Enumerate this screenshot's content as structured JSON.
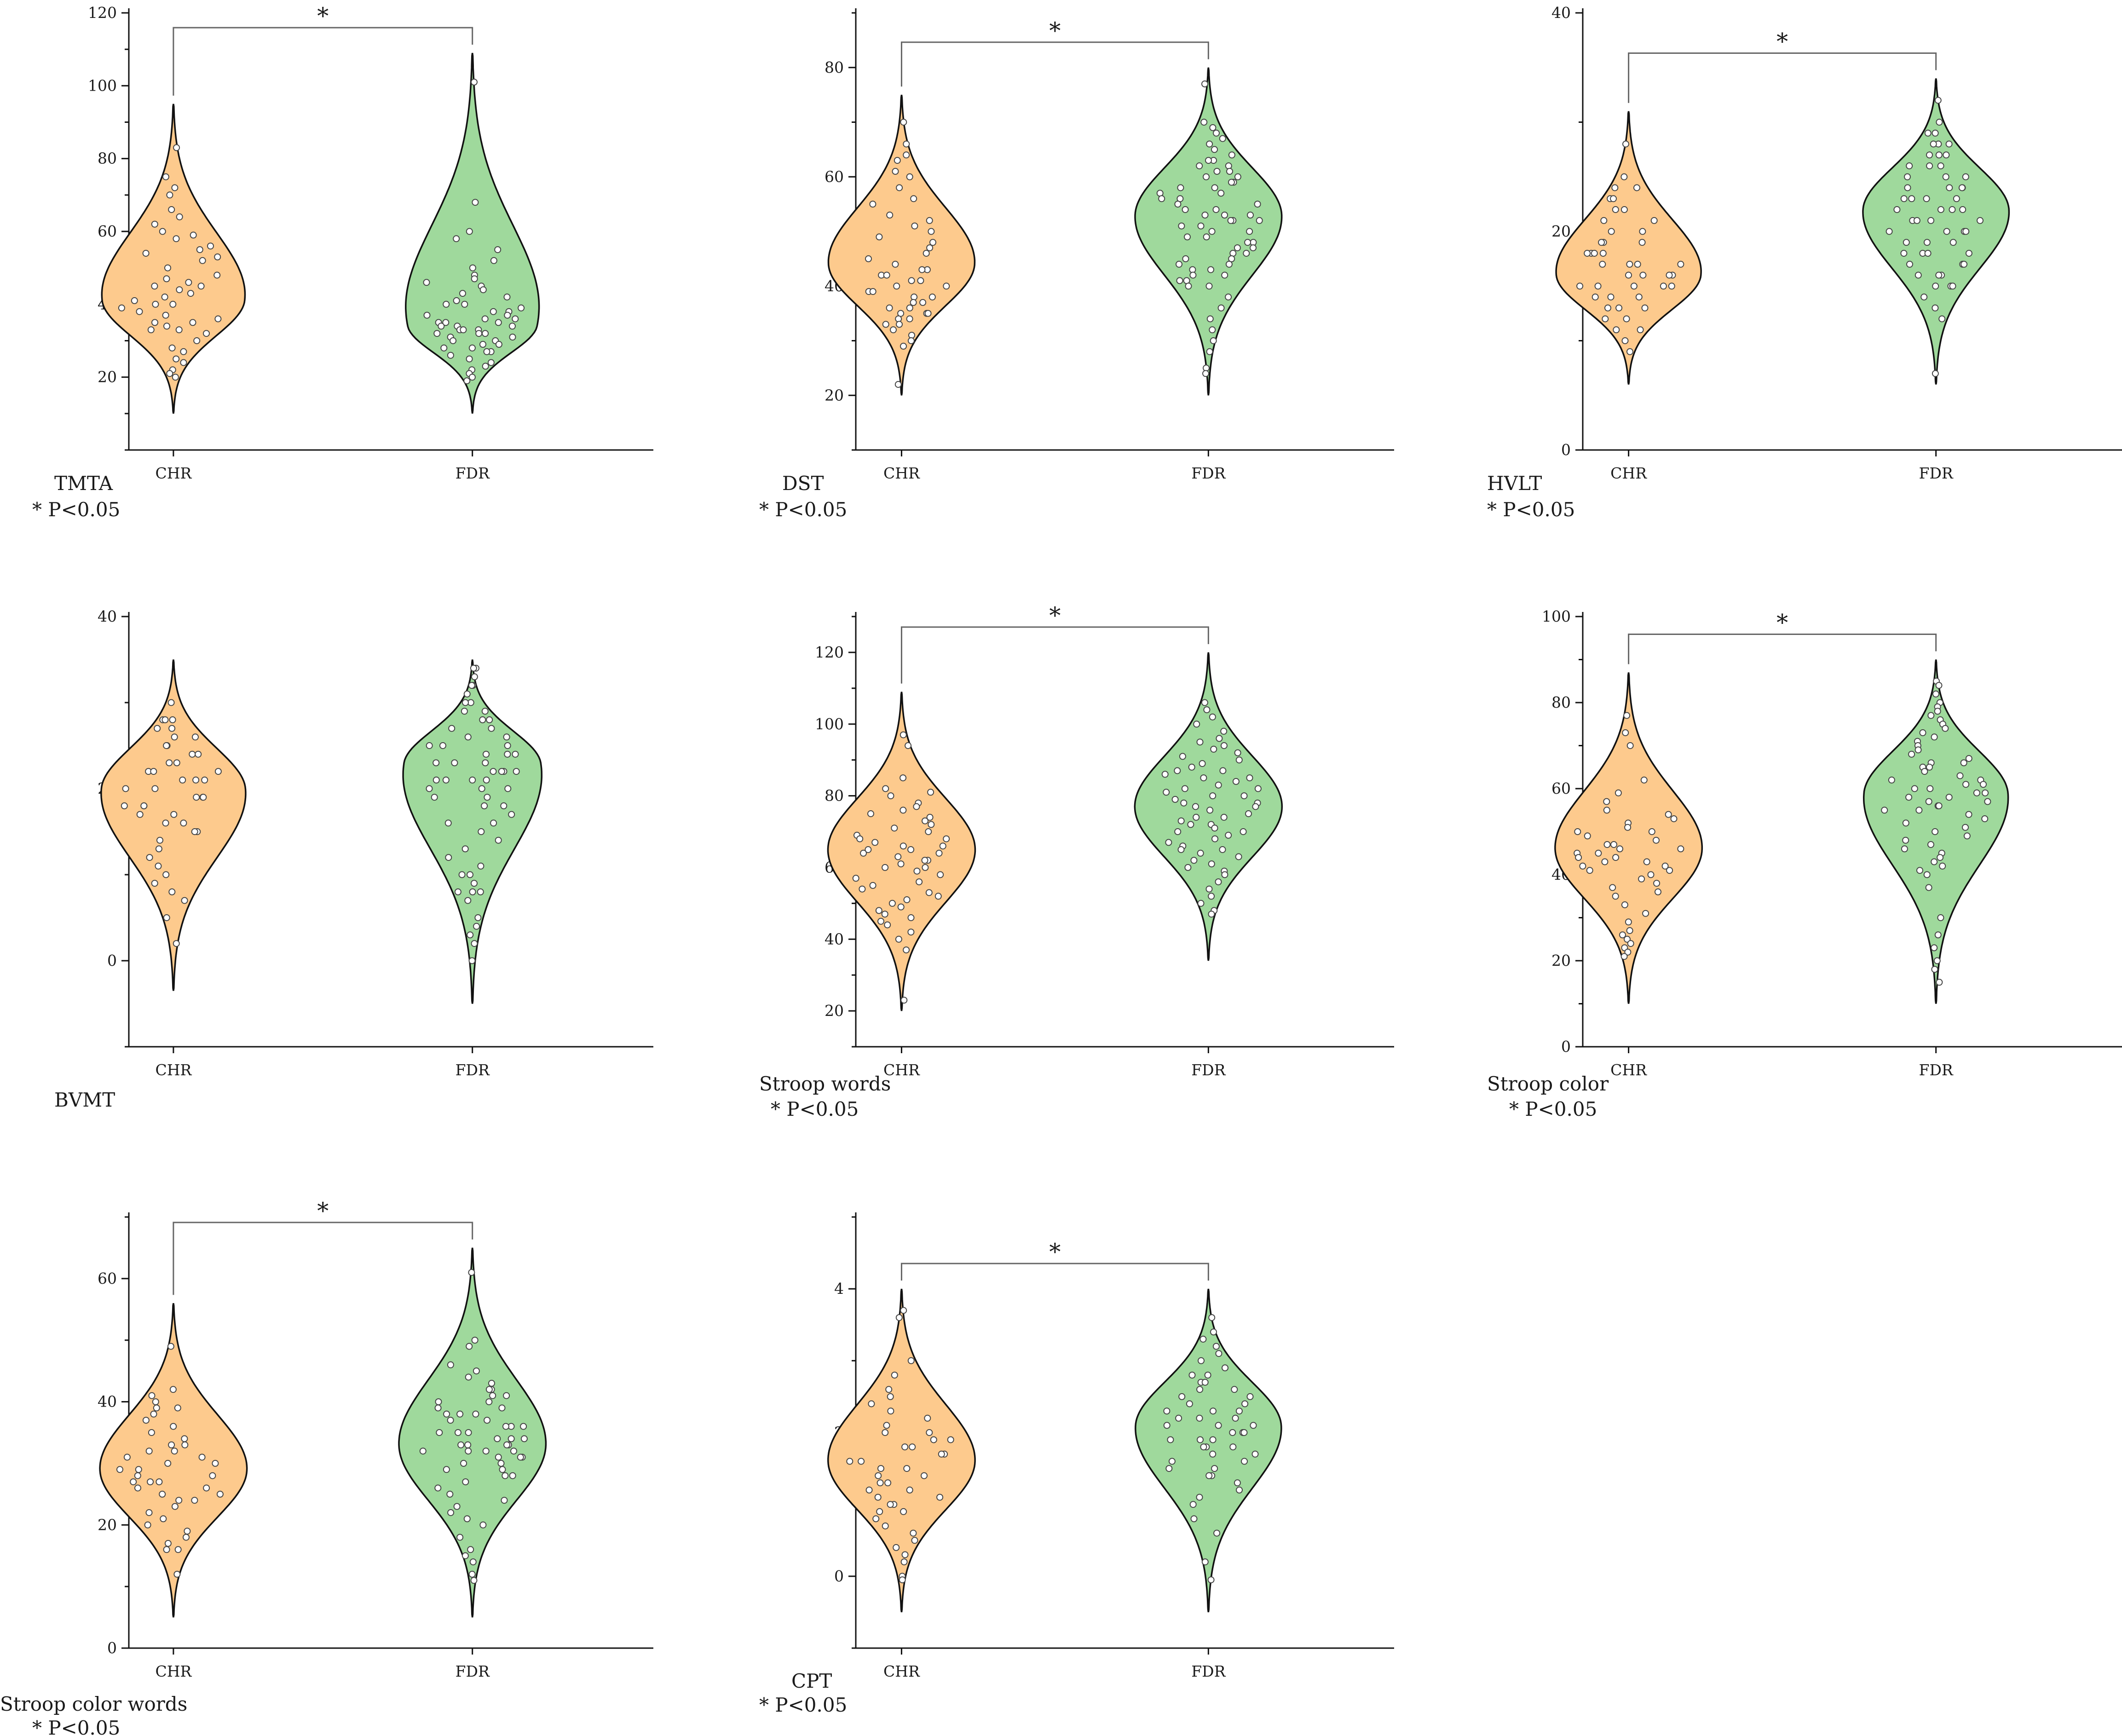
{
  "figure": {
    "colors": {
      "CHR": "#fdca8d",
      "FDR": "#9fd99c",
      "outline": "#111111",
      "points": "#ffffff",
      "point_edge": "#444444",
      "bracket": "#666666"
    }
  },
  "chart_data": [
    {
      "type": "violin",
      "label": "TMTA",
      "significance_note": "* P<0.05",
      "significance_mark": "*",
      "ylim": [
        0,
        120
      ],
      "yticks": [
        20,
        40,
        60,
        80,
        100,
        120
      ],
      "categories": [
        "CHR",
        "FDR"
      ],
      "series": [
        {
          "name": "CHR",
          "range": [
            10,
            95
          ],
          "peak": 41,
          "values": [
            83,
            75,
            72,
            70,
            66,
            64,
            62,
            60,
            58,
            56,
            55,
            54,
            53,
            52,
            50,
            48,
            47,
            46,
            45,
            45,
            44,
            43,
            42,
            41,
            40,
            40,
            39,
            38,
            37,
            36,
            35,
            35,
            34,
            33,
            33,
            32,
            30,
            28,
            27,
            25,
            24,
            22,
            21,
            20,
            59
          ]
        },
        {
          "name": "FDR",
          "range": [
            10,
            109
          ],
          "peak": 34,
          "values": [
            101,
            68,
            60,
            58,
            55,
            52,
            50,
            48,
            47,
            46,
            45,
            44,
            43,
            42,
            41,
            40,
            40,
            39,
            38,
            38,
            37,
            37,
            36,
            36,
            35,
            35,
            35,
            34,
            34,
            34,
            33,
            33,
            33,
            32,
            32,
            32,
            31,
            31,
            30,
            30,
            29,
            29,
            28,
            28,
            27,
            27,
            26,
            25,
            24,
            23,
            22,
            21,
            20,
            19
          ]
        }
      ]
    },
    {
      "type": "violin",
      "label": "DST",
      "significance_note": "* P<0.05",
      "significance_mark": "*",
      "ylim": [
        10,
        90
      ],
      "yticks": [
        20,
        40,
        60,
        80
      ],
      "categories": [
        "CHR",
        "FDR"
      ],
      "series": [
        {
          "name": "CHR",
          "range": [
            20,
            75
          ],
          "peak": 44,
          "values": [
            70,
            66,
            64,
            63,
            61,
            60,
            58,
            56,
            55,
            53,
            52,
            51,
            50,
            49,
            48,
            47,
            46,
            45,
            44,
            43,
            43,
            42,
            42,
            41,
            41,
            40,
            40,
            39,
            39,
            38,
            38,
            37,
            37,
            36,
            36,
            35,
            35,
            35,
            34,
            34,
            33,
            33,
            32,
            31,
            30,
            29,
            22
          ]
        },
        {
          "name": "FDR",
          "range": [
            20,
            80
          ],
          "peak": 53,
          "values": [
            77,
            70,
            69,
            68,
            67,
            66,
            65,
            64,
            63,
            63,
            62,
            62,
            61,
            61,
            60,
            60,
            59,
            59,
            58,
            58,
            57,
            57,
            56,
            56,
            55,
            55,
            54,
            54,
            53,
            53,
            53,
            52,
            52,
            52,
            51,
            51,
            50,
            50,
            49,
            49,
            48,
            48,
            47,
            47,
            46,
            46,
            45,
            45,
            44,
            44,
            43,
            43,
            42,
            42,
            41,
            41,
            40,
            40,
            38,
            36,
            34,
            32,
            30,
            28,
            25,
            24
          ]
        }
      ]
    },
    {
      "type": "violin",
      "label": "HVLT",
      "significance_note": "* P<0.05",
      "significance_mark": "*",
      "ylim": [
        0,
        40
      ],
      "yticks": [
        0,
        20,
        40
      ],
      "categories": [
        "CHR",
        "FDR"
      ],
      "series": [
        {
          "name": "CHR",
          "range": [
            6,
            31
          ],
          "peak": 16,
          "values": [
            28,
            25,
            24,
            24,
            23,
            23,
            22,
            22,
            21,
            21,
            20,
            20,
            19,
            19,
            19,
            18,
            18,
            18,
            18,
            17,
            17,
            17,
            17,
            16,
            16,
            16,
            16,
            15,
            15,
            15,
            15,
            15,
            14,
            14,
            14,
            13,
            13,
            13,
            12,
            12,
            11,
            11,
            10,
            9
          ]
        },
        {
          "name": "FDR",
          "range": [
            6,
            34
          ],
          "peak": 22,
          "values": [
            32,
            30,
            29,
            29,
            28,
            28,
            28,
            27,
            27,
            27,
            26,
            26,
            26,
            25,
            25,
            25,
            24,
            24,
            24,
            24,
            23,
            23,
            23,
            23,
            22,
            22,
            22,
            22,
            21,
            21,
            21,
            21,
            20,
            20,
            20,
            20,
            19,
            19,
            19,
            18,
            18,
            18,
            18,
            17,
            17,
            17,
            16,
            16,
            16,
            15,
            15,
            15,
            14,
            13,
            12,
            7
          ]
        }
      ]
    },
    {
      "type": "violin",
      "label": "BVMT",
      "significance_note": "",
      "significance_mark": "",
      "ylim": [
        -10,
        40
      ],
      "yticks": [
        0,
        20,
        40
      ],
      "categories": [
        "CHR",
        "FDR"
      ],
      "series": [
        {
          "name": "CHR",
          "range": [
            -3.5,
            35
          ],
          "peak": 20,
          "values": [
            30,
            28,
            28,
            28,
            27,
            27,
            26,
            26,
            25,
            25,
            24,
            24,
            23,
            23,
            22,
            22,
            22,
            21,
            21,
            21,
            20,
            20,
            19,
            19,
            19,
            18,
            18,
            18,
            17,
            17,
            16,
            16,
            15,
            15,
            14,
            13,
            12,
            11,
            10,
            9,
            8,
            7,
            5,
            2
          ]
        },
        {
          "name": "FDR",
          "range": [
            -5,
            35
          ],
          "peak": 23,
          "values": [
            34,
            34,
            33,
            32,
            32,
            31,
            30,
            30,
            29,
            29,
            28,
            28,
            27,
            27,
            26,
            26,
            25,
            25,
            25,
            24,
            24,
            24,
            23,
            23,
            23,
            22,
            22,
            22,
            22,
            21,
            21,
            21,
            21,
            20,
            20,
            20,
            19,
            19,
            18,
            18,
            17,
            16,
            16,
            15,
            14,
            13,
            12,
            11,
            10,
            10,
            9,
            8,
            8,
            8,
            7,
            5,
            4,
            3,
            2,
            0
          ]
        }
      ]
    },
    {
      "type": "violin",
      "label": "Stroop words",
      "significance_note": "* P<0.05",
      "significance_mark": "*",
      "ylim": [
        10,
        130
      ],
      "yticks": [
        20,
        40,
        60,
        80,
        100,
        120
      ],
      "categories": [
        "CHR",
        "FDR"
      ],
      "series": [
        {
          "name": "CHR",
          "range": [
            20,
            109
          ],
          "peak": 65,
          "values": [
            97,
            94,
            85,
            82,
            81,
            80,
            78,
            77,
            76,
            75,
            74,
            73,
            72,
            71,
            70,
            69,
            68,
            68,
            67,
            66,
            66,
            65,
            65,
            64,
            64,
            63,
            62,
            62,
            61,
            60,
            60,
            59,
            58,
            57,
            56,
            55,
            54,
            53,
            52,
            51,
            50,
            49,
            48,
            47,
            46,
            45,
            44,
            42,
            40,
            37,
            23
          ]
        },
        {
          "name": "FDR",
          "range": [
            34,
            120
          ],
          "peak": 77,
          "values": [
            106,
            104,
            102,
            100,
            98,
            96,
            95,
            94,
            93,
            92,
            91,
            90,
            89,
            88,
            87,
            87,
            86,
            85,
            85,
            84,
            83,
            82,
            82,
            81,
            80,
            80,
            79,
            78,
            78,
            77,
            77,
            76,
            75,
            74,
            74,
            73,
            72,
            72,
            71,
            70,
            70,
            69,
            68,
            67,
            66,
            65,
            65,
            64,
            63,
            62,
            61,
            60,
            59,
            58,
            56,
            54,
            52,
            50,
            48,
            47
          ]
        }
      ]
    },
    {
      "type": "violin",
      "label": "Stroop color",
      "significance_note": "* P<0.05",
      "significance_mark": "*",
      "ylim": [
        0,
        100
      ],
      "yticks": [
        0,
        20,
        40,
        60,
        80,
        100
      ],
      "categories": [
        "CHR",
        "FDR"
      ],
      "series": [
        {
          "name": "CHR",
          "range": [
            10,
            87
          ],
          "peak": 46,
          "values": [
            77,
            73,
            70,
            62,
            59,
            57,
            55,
            54,
            53,
            52,
            51,
            50,
            50,
            49,
            48,
            47,
            47,
            46,
            46,
            45,
            45,
            44,
            44,
            43,
            43,
            42,
            42,
            41,
            41,
            40,
            39,
            38,
            37,
            36,
            35,
            33,
            31,
            29,
            27,
            26,
            25,
            24,
            23,
            22,
            21
          ]
        },
        {
          "name": "FDR",
          "range": [
            10,
            90
          ],
          "peak": 59,
          "values": [
            85,
            84,
            82,
            80,
            79,
            78,
            77,
            76,
            75,
            74,
            73,
            72,
            71,
            70,
            69,
            68,
            67,
            66,
            66,
            65,
            65,
            64,
            63,
            62,
            62,
            61,
            61,
            60,
            60,
            59,
            59,
            58,
            58,
            57,
            57,
            56,
            56,
            55,
            55,
            54,
            53,
            52,
            51,
            50,
            49,
            48,
            47,
            46,
            45,
            44,
            43,
            42,
            41,
            40,
            37,
            30,
            26,
            23,
            20,
            18,
            15
          ]
        }
      ]
    },
    {
      "type": "violin",
      "label": "Stroop color words",
      "significance_note": "* P<0.05",
      "significance_mark": "*",
      "ylim": [
        0,
        70
      ],
      "yticks": [
        0,
        20,
        40,
        60
      ],
      "categories": [
        "CHR",
        "FDR"
      ],
      "series": [
        {
          "name": "CHR",
          "range": [
            5,
            56
          ],
          "peak": 29,
          "values": [
            49,
            42,
            41,
            40,
            39,
            39,
            38,
            37,
            36,
            35,
            34,
            33,
            33,
            32,
            32,
            31,
            31,
            30,
            30,
            29,
            29,
            28,
            28,
            27,
            27,
            27,
            26,
            26,
            25,
            25,
            24,
            24,
            23,
            22,
            21,
            20,
            19,
            18,
            17,
            16,
            16,
            12
          ]
        },
        {
          "name": "FDR",
          "range": [
            5,
            65
          ],
          "peak": 33,
          "values": [
            61,
            50,
            49,
            46,
            45,
            44,
            43,
            42,
            42,
            41,
            41,
            40,
            40,
            39,
            39,
            38,
            38,
            38,
            37,
            37,
            36,
            36,
            36,
            35,
            35,
            35,
            34,
            34,
            34,
            33,
            33,
            33,
            33,
            32,
            32,
            32,
            32,
            31,
            31,
            31,
            30,
            30,
            29,
            29,
            28,
            28,
            27,
            26,
            25,
            24,
            23,
            22,
            21,
            20,
            18,
            16,
            15,
            14,
            12,
            11
          ]
        }
      ]
    },
    {
      "type": "violin",
      "label": "CPT",
      "significance_note": "* P<0.05",
      "significance_mark": "*",
      "ylim": [
        -1,
        5
      ],
      "yticks": [
        0,
        2,
        4
      ],
      "categories": [
        "CHR",
        "FDR"
      ],
      "series": [
        {
          "name": "CHR",
          "range": [
            -0.5,
            4
          ],
          "peak": 1.6,
          "values": [
            3.7,
            3.6,
            3.0,
            2.8,
            2.6,
            2.5,
            2.4,
            2.3,
            2.2,
            2.1,
            2.0,
            2.0,
            1.9,
            1.9,
            1.8,
            1.8,
            1.7,
            1.7,
            1.6,
            1.6,
            1.5,
            1.5,
            1.4,
            1.4,
            1.3,
            1.3,
            1.2,
            1.2,
            1.1,
            1.1,
            1.0,
            1.0,
            0.9,
            0.9,
            0.8,
            0.7,
            0.6,
            0.5,
            0.4,
            0.3,
            0.2,
            0.0,
            -0.05
          ]
        },
        {
          "name": "FDR",
          "range": [
            -0.5,
            4
          ],
          "peak": 2.1,
          "values": [
            3.6,
            3.4,
            3.3,
            3.2,
            3.1,
            3.0,
            2.9,
            2.8,
            2.8,
            2.7,
            2.7,
            2.6,
            2.6,
            2.5,
            2.5,
            2.4,
            2.4,
            2.3,
            2.3,
            2.3,
            2.2,
            2.2,
            2.2,
            2.1,
            2.1,
            2.1,
            2.0,
            2.0,
            2.0,
            1.9,
            1.9,
            1.9,
            1.8,
            1.8,
            1.8,
            1.7,
            1.7,
            1.6,
            1.6,
            1.5,
            1.5,
            1.4,
            1.4,
            1.3,
            1.2,
            1.1,
            1.0,
            0.8,
            0.6,
            0.2,
            -0.05
          ]
        }
      ]
    }
  ]
}
